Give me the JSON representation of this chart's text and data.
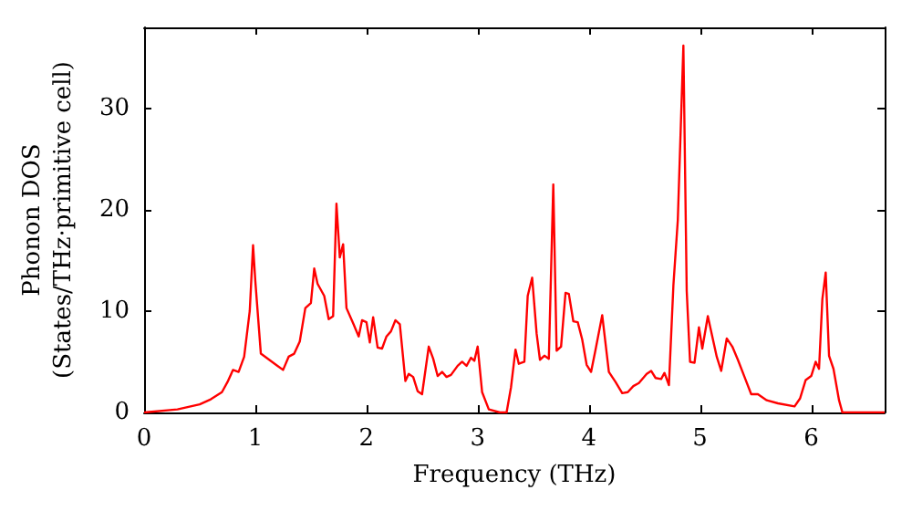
{
  "chart_data": {
    "type": "line",
    "xlabel": "Frequency (THz)",
    "ylabel": "Phonon DOS\n(States/THz·primitive cell)",
    "xlim": [
      0,
      6.66
    ],
    "ylim": [
      0,
      38
    ],
    "xticks": [
      0,
      1,
      2,
      3,
      4,
      5,
      6
    ],
    "yticks": [
      0,
      10,
      20,
      30
    ],
    "grid": false,
    "marker": "none",
    "line_style": "solid",
    "series": [
      {
        "color": "#ff0000",
        "x": [
          0,
          0.3,
          0.5,
          0.6,
          0.7,
          0.75,
          0.8,
          0.85,
          0.9,
          0.95,
          0.98,
          1.0,
          1.05,
          1.1,
          1.2,
          1.25,
          1.3,
          1.35,
          1.4,
          1.45,
          1.5,
          1.53,
          1.56,
          1.62,
          1.66,
          1.7,
          1.73,
          1.76,
          1.79,
          1.82,
          1.88,
          1.93,
          1.96,
          2.0,
          2.03,
          2.06,
          2.1,
          2.14,
          2.18,
          2.22,
          2.26,
          2.3,
          2.35,
          2.38,
          2.42,
          2.46,
          2.5,
          2.56,
          2.6,
          2.64,
          2.68,
          2.72,
          2.76,
          2.82,
          2.86,
          2.9,
          2.94,
          2.97,
          3.0,
          3.04,
          3.1,
          3.2,
          3.26,
          3.3,
          3.34,
          3.37,
          3.42,
          3.45,
          3.49,
          3.53,
          3.56,
          3.6,
          3.64,
          3.68,
          3.71,
          3.75,
          3.79,
          3.82,
          3.86,
          3.9,
          3.94,
          3.98,
          4.02,
          4.06,
          4.12,
          4.18,
          4.24,
          4.3,
          4.35,
          4.4,
          4.45,
          4.52,
          4.56,
          4.6,
          4.65,
          4.68,
          4.72,
          4.76,
          4.8,
          4.85,
          4.88,
          4.91,
          4.95,
          4.99,
          5.02,
          5.07,
          5.1,
          5.15,
          5.19,
          5.24,
          5.29,
          5.34,
          5.4,
          5.46,
          5.52,
          5.6,
          5.7,
          5.85,
          5.9,
          5.95,
          6.0,
          6.04,
          6.07,
          6.1,
          6.13,
          6.16,
          6.2,
          6.25,
          6.28,
          6.66
        ],
        "values": [
          0,
          0.3,
          0.8,
          1.3,
          2,
          3,
          4.2,
          4.0,
          5.5,
          10,
          16.5,
          13,
          5.8,
          5.4,
          4.6,
          4.2,
          5.5,
          5.8,
          7,
          10.3,
          10.8,
          14.2,
          12.7,
          11.5,
          9.2,
          9.5,
          20.6,
          15.3,
          16.6,
          10.3,
          8.8,
          7.5,
          9.1,
          8.9,
          6.9,
          9.4,
          6.4,
          6.3,
          7.5,
          8,
          9.1,
          8.7,
          3.1,
          3.8,
          3.5,
          2.1,
          1.8,
          6.5,
          5.3,
          3.6,
          4.0,
          3.5,
          3.7,
          4.6,
          5.0,
          4.6,
          5.4,
          5.1,
          6.5,
          2.0,
          0.3,
          0,
          0,
          2.5,
          6.2,
          4.8,
          5.0,
          11.5,
          13.3,
          7.8,
          5.2,
          5.6,
          5.3,
          22.5,
          6.1,
          6.5,
          11.8,
          11.7,
          9.0,
          8.9,
          7.2,
          4.7,
          4.0,
          6.2,
          9.6,
          4.0,
          3.0,
          1.9,
          2.0,
          2.6,
          2.9,
          3.8,
          4.1,
          3.4,
          3.3,
          3.9,
          2.7,
          12.5,
          19,
          36.2,
          12,
          5,
          4.9,
          8.4,
          6.3,
          9.5,
          8.0,
          5.5,
          4.1,
          7.3,
          6.5,
          5.2,
          3.5,
          1.8,
          1.8,
          1.2,
          0.9,
          0.6,
          1.4,
          3.2,
          3.6,
          5.0,
          4.3,
          11.2,
          13.8,
          5.6,
          4.3,
          1.2,
          0,
          0
        ]
      }
    ]
  }
}
